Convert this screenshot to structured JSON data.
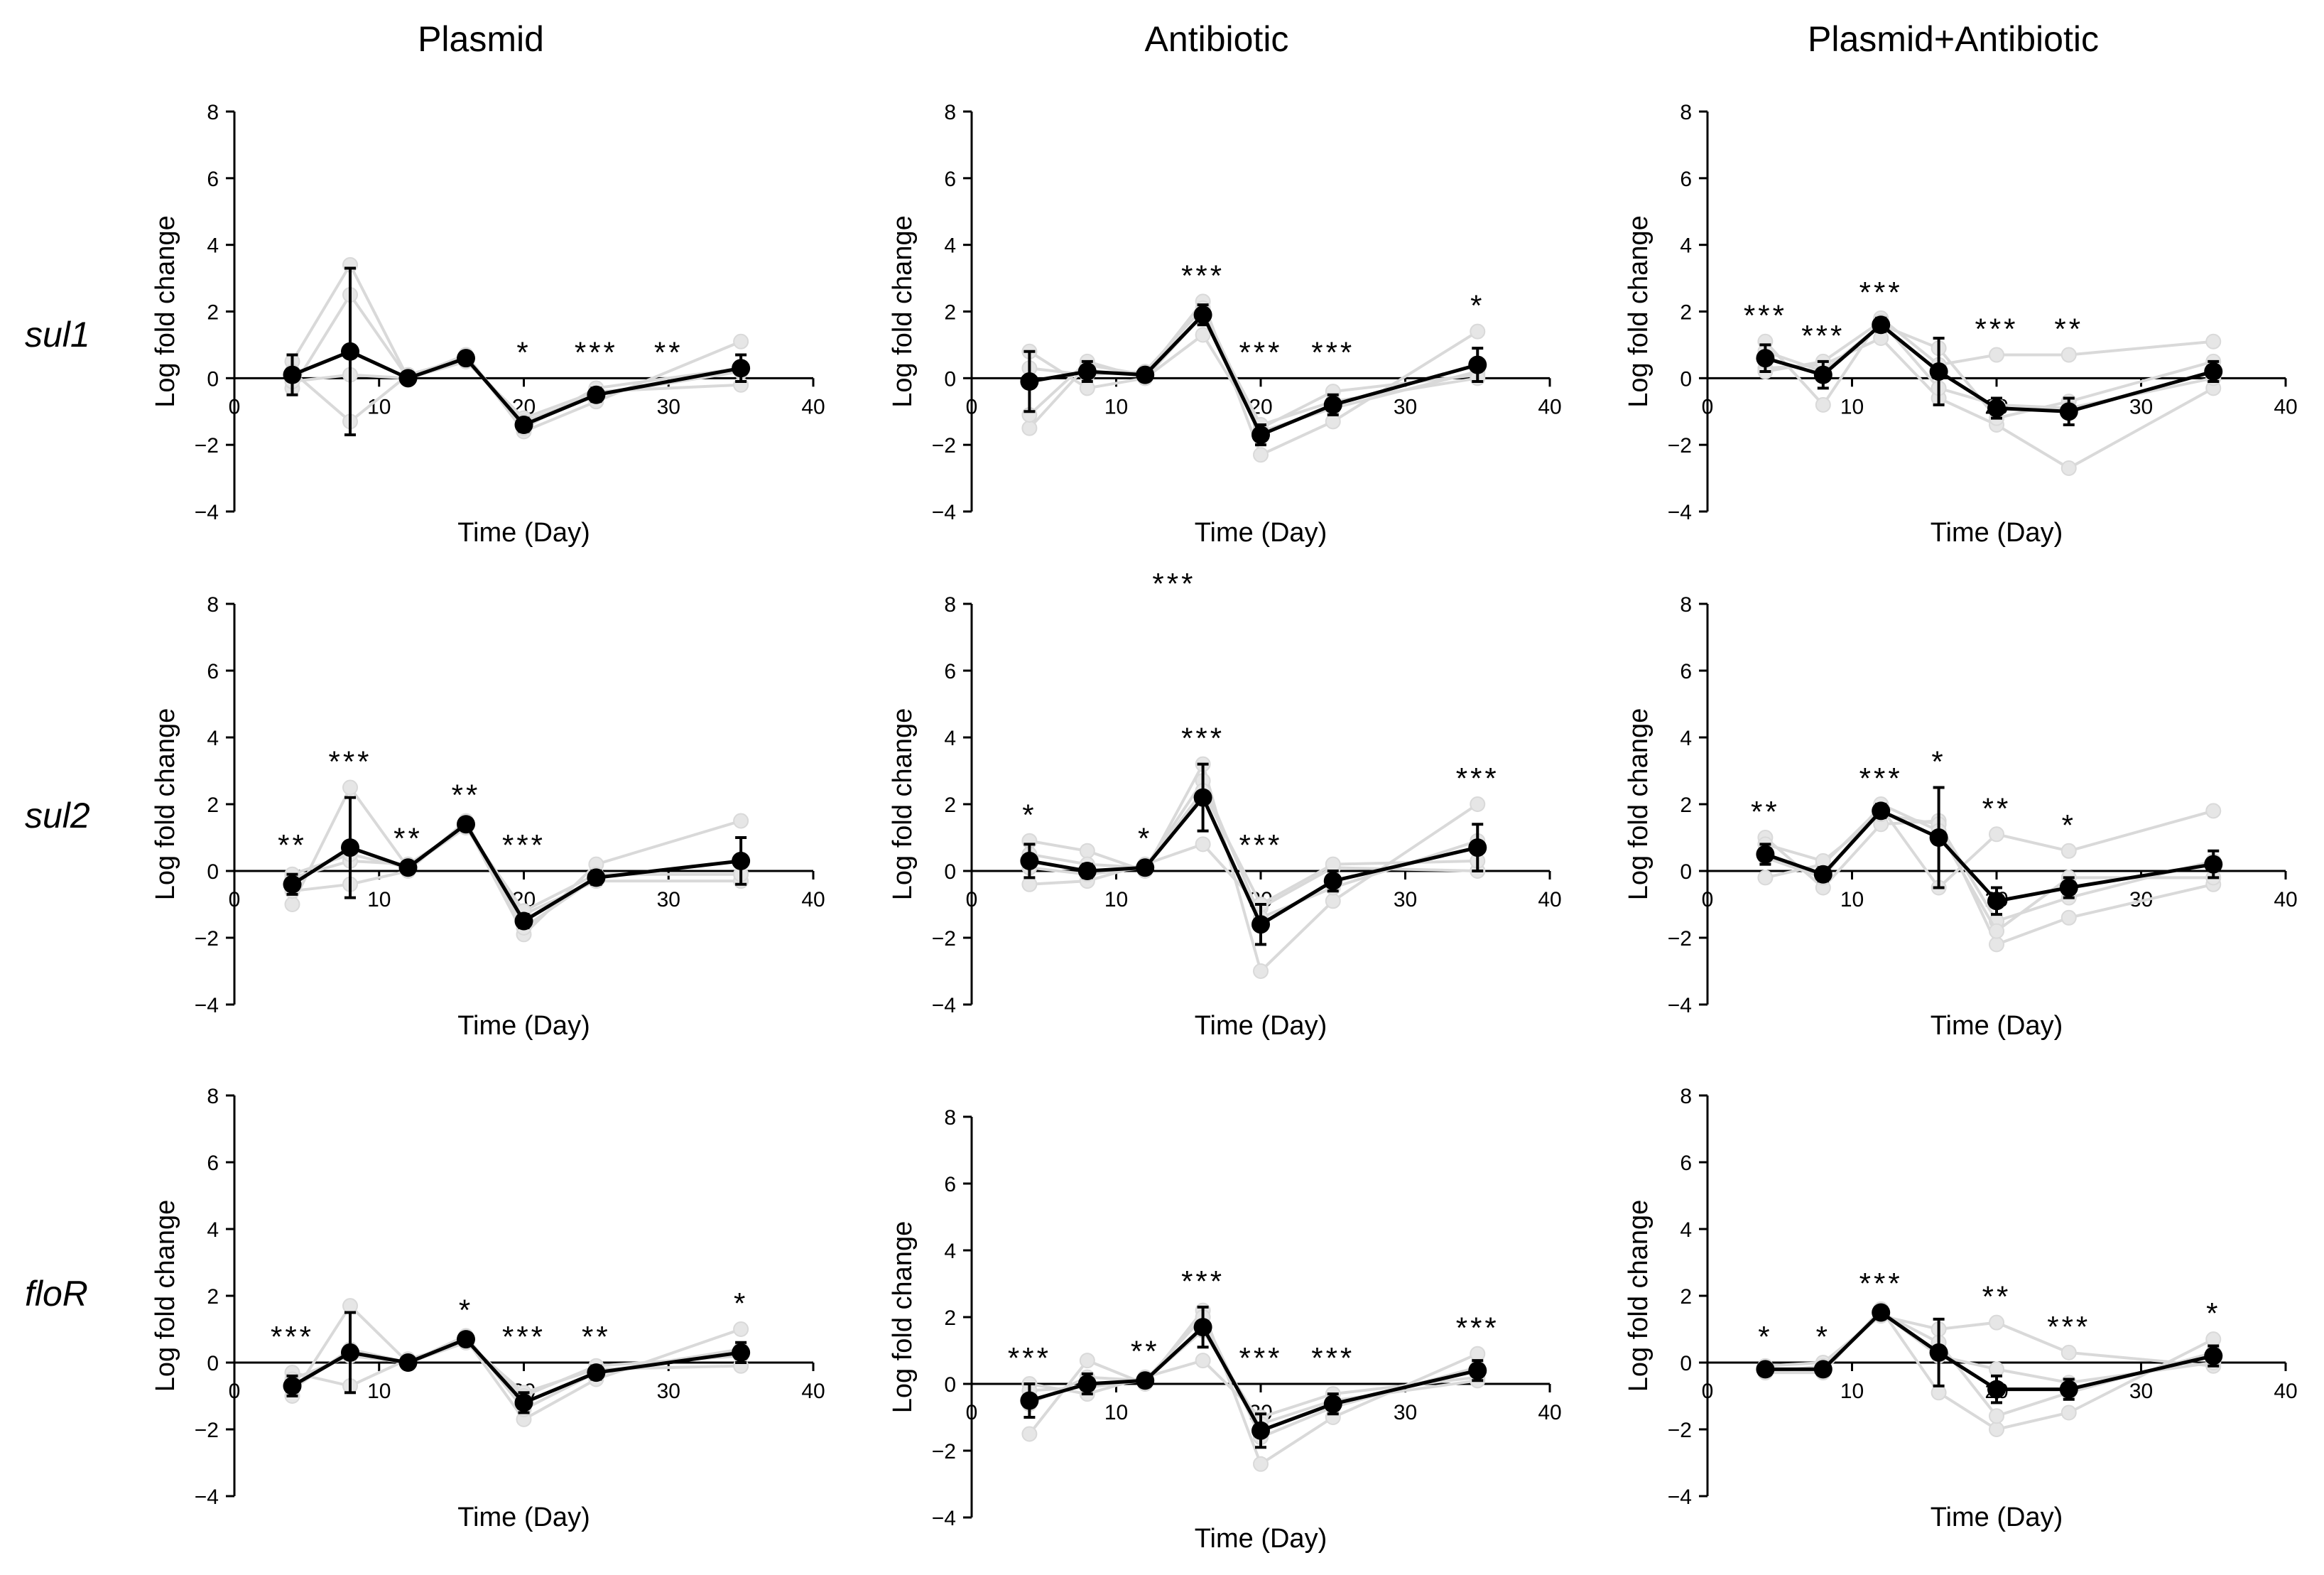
{
  "figure": {
    "column_titles": [
      "Plasmid",
      "Antibiotic",
      "Plasmid+Antibiotic"
    ],
    "row_labels": [
      "sul1",
      "sul2",
      "floR"
    ],
    "colors": {
      "mean": "#000000",
      "replicate": "#d9d9d9",
      "axis": "#000000"
    }
  },
  "chart_data": [
    {
      "type": "line",
      "id": "sul1-plasmid",
      "gene": "sul1",
      "treatment": "Plasmid",
      "xlabel": "Time (Day)",
      "ylabel": "Log fold change",
      "xlim": [
        0,
        40
      ],
      "ylim": [
        -4,
        8
      ],
      "xticks": [
        "0",
        "10",
        "20",
        "30",
        "40"
      ],
      "yticks": [
        "−4",
        "−2",
        "0",
        "2",
        "4",
        "6",
        "8"
      ],
      "x": [
        4,
        8,
        12,
        16,
        20,
        25,
        35
      ],
      "series": [
        {
          "name": "mean",
          "values": [
            0.1,
            0.8,
            0.0,
            0.6,
            -1.4,
            -0.5,
            0.3
          ]
        },
        {
          "name": "rep1",
          "values": [
            0.5,
            3.4,
            0.0,
            0.7,
            -1.6,
            -0.7,
            1.1
          ]
        },
        {
          "name": "rep2",
          "values": [
            -0.3,
            2.5,
            0.0,
            0.5,
            -1.2,
            -0.4,
            -0.2
          ]
        },
        {
          "name": "rep3",
          "values": [
            0.2,
            -1.3,
            0.1,
            0.6,
            -1.3,
            -0.5,
            0.2
          ]
        },
        {
          "name": "rep4",
          "values": [
            -0.1,
            0.1,
            0.0,
            0.7,
            -1.5,
            -0.3,
            0.3
          ]
        }
      ],
      "error": [
        0.6,
        2.5,
        0.1,
        0.1,
        0.2,
        0.2,
        0.4
      ],
      "significance": [
        {
          "x": 20,
          "label": "*"
        },
        {
          "x": 25,
          "label": "***"
        },
        {
          "x": 30,
          "label": "**"
        }
      ]
    },
    {
      "type": "line",
      "id": "sul1-antibiotic",
      "gene": "sul1",
      "treatment": "Antibiotic",
      "xlabel": "Time (Day)",
      "ylabel": "Log fold change",
      "xlim": [
        0,
        40
      ],
      "ylim": [
        -4,
        8
      ],
      "xticks": [
        "0",
        "10",
        "20",
        "30",
        "40"
      ],
      "yticks": [
        "−4",
        "−2",
        "0",
        "2",
        "4",
        "6",
        "8"
      ],
      "x": [
        4,
        8,
        12,
        16,
        20,
        25,
        35
      ],
      "series": [
        {
          "name": "mean",
          "values": [
            -0.1,
            0.2,
            0.1,
            1.9,
            -1.7,
            -0.8,
            0.4
          ]
        },
        {
          "name": "rep1",
          "values": [
            -1.5,
            0.4,
            0.1,
            2.3,
            -2.3,
            -1.3,
            1.4
          ]
        },
        {
          "name": "rep2",
          "values": [
            0.8,
            -0.3,
            0.0,
            1.3,
            -1.5,
            -0.4,
            0.1
          ]
        },
        {
          "name": "rep3",
          "values": [
            0.3,
            0.1,
            0.2,
            2.1,
            -1.6,
            -0.9,
            0.2
          ]
        },
        {
          "name": "rep4",
          "values": [
            -1.1,
            0.5,
            0.0,
            1.9,
            -1.4,
            -0.7,
            0.0
          ]
        }
      ],
      "error": [
        0.9,
        0.3,
        0.1,
        0.3,
        0.3,
        0.3,
        0.5
      ],
      "significance": [
        {
          "x": 16,
          "label": "***"
        },
        {
          "x": 20,
          "label": "***"
        },
        {
          "x": 25,
          "label": "***"
        },
        {
          "x": 35,
          "label": "*"
        }
      ]
    },
    {
      "type": "line",
      "id": "sul1-plasmid-antibiotic",
      "gene": "sul1",
      "treatment": "Plasmid+Antibiotic",
      "xlabel": "Time (Day)",
      "ylabel": "Log fold change",
      "xlim": [
        0,
        40
      ],
      "ylim": [
        -4,
        8
      ],
      "xticks": [
        "0",
        "10",
        "20",
        "30",
        "40"
      ],
      "yticks": [
        "−4",
        "−2",
        "0",
        "2",
        "4",
        "6",
        "8"
      ],
      "x": [
        4,
        8,
        12,
        16,
        20,
        25,
        35
      ],
      "series": [
        {
          "name": "mean",
          "values": [
            0.6,
            0.1,
            1.6,
            0.2,
            -0.9,
            -1.0,
            0.2
          ]
        },
        {
          "name": "rep1",
          "values": [
            1.1,
            -0.8,
            1.8,
            0.4,
            0.7,
            0.7,
            1.1
          ]
        },
        {
          "name": "rep2",
          "values": [
            0.3,
            0.4,
            1.2,
            -0.6,
            -1.4,
            -2.7,
            -0.3
          ]
        },
        {
          "name": "rep3",
          "values": [
            0.8,
            0.2,
            1.6,
            0.9,
            -1.2,
            -0.7,
            0.5
          ]
        },
        {
          "name": "rep4",
          "values": [
            0.2,
            0.5,
            1.7,
            -0.3,
            -0.8,
            -0.9,
            0.0
          ]
        }
      ],
      "error": [
        0.4,
        0.4,
        0.2,
        1.0,
        0.3,
        0.4,
        0.3
      ],
      "significance": [
        {
          "x": 4,
          "label": "***"
        },
        {
          "x": 8,
          "label": "***"
        },
        {
          "x": 12,
          "label": "***"
        },
        {
          "x": 20,
          "label": "***"
        },
        {
          "x": 25,
          "label": "**"
        }
      ]
    },
    {
      "type": "line",
      "id": "sul2-plasmid",
      "gene": "sul2",
      "treatment": "Plasmid",
      "xlabel": "Time (Day)",
      "ylabel": "Log fold change",
      "xlim": [
        0,
        40
      ],
      "ylim": [
        -4,
        8
      ],
      "xticks": [
        "0",
        "10",
        "20",
        "30",
        "40"
      ],
      "yticks": [
        "−4",
        "−2",
        "0",
        "2",
        "4",
        "6",
        "8"
      ],
      "x": [
        4,
        8,
        12,
        16,
        20,
        25,
        35
      ],
      "series": [
        {
          "name": "mean",
          "values": [
            -0.4,
            0.7,
            0.1,
            1.4,
            -1.5,
            -0.2,
            0.3
          ]
        },
        {
          "name": "rep1",
          "values": [
            -1.0,
            2.5,
            0.1,
            1.4,
            -1.9,
            0.2,
            1.5
          ]
        },
        {
          "name": "rep2",
          "values": [
            -0.2,
            0.3,
            0.2,
            1.3,
            -1.3,
            -0.3,
            -0.3
          ]
        },
        {
          "name": "rep3",
          "values": [
            -0.6,
            -0.4,
            0.0,
            1.5,
            -1.7,
            -0.2,
            0.3
          ]
        },
        {
          "name": "rep4",
          "values": [
            -0.1,
            0.5,
            0.1,
            1.3,
            -1.2,
            -0.1,
            -0.1
          ]
        }
      ],
      "error": [
        0.3,
        1.5,
        0.1,
        0.1,
        0.2,
        0.2,
        0.7
      ],
      "significance": [
        {
          "x": 4,
          "label": "**"
        },
        {
          "x": 8,
          "label": "***"
        },
        {
          "x": 12,
          "label": "**"
        },
        {
          "x": 16,
          "label": "**"
        },
        {
          "x": 20,
          "label": "***"
        }
      ]
    },
    {
      "type": "line",
      "id": "sul2-antibiotic",
      "gene": "sul2",
      "treatment": "Antibiotic",
      "xlabel": "Time (Day)",
      "ylabel": "Log fold change",
      "xlim": [
        0,
        40
      ],
      "ylim": [
        -4,
        8
      ],
      "xticks": [
        "0",
        "10",
        "20",
        "30",
        "40"
      ],
      "yticks": [
        "−4",
        "−2",
        "0",
        "2",
        "4",
        "6",
        "8"
      ],
      "x": [
        4,
        8,
        12,
        16,
        20,
        25,
        35
      ],
      "series": [
        {
          "name": "mean",
          "values": [
            0.3,
            0.0,
            0.1,
            2.2,
            -1.6,
            -0.3,
            0.7
          ]
        },
        {
          "name": "rep1",
          "values": [
            0.9,
            0.6,
            0.0,
            3.2,
            -3.0,
            -0.9,
            2.0
          ]
        },
        {
          "name": "rep2",
          "values": [
            -0.4,
            -0.3,
            0.2,
            0.8,
            -1.1,
            0.1,
            0.0
          ]
        },
        {
          "name": "rep3",
          "values": [
            0.5,
            0.2,
            0.1,
            2.7,
            -1.4,
            -0.5,
            0.9
          ]
        },
        {
          "name": "rep4",
          "values": [
            0.1,
            -0.1,
            0.1,
            2.4,
            -1.0,
            0.2,
            0.3
          ]
        }
      ],
      "error": [
        0.5,
        0.2,
        0.1,
        1.0,
        0.6,
        0.3,
        0.7
      ],
      "significance": [
        {
          "x": 4,
          "label": "*"
        },
        {
          "x": 12,
          "label": "*"
        },
        {
          "x": 16,
          "label": "***"
        },
        {
          "x": 20,
          "label": "***"
        },
        {
          "x": 35,
          "label": "***"
        }
      ],
      "extra_annotation": {
        "label": "***",
        "x": 14,
        "y": 8.3
      }
    },
    {
      "type": "line",
      "id": "sul2-plasmid-antibiotic",
      "gene": "sul2",
      "treatment": "Plasmid+Antibiotic",
      "xlabel": "Time (Day)",
      "ylabel": "Log fold change",
      "xlim": [
        0,
        40
      ],
      "ylim": [
        -4,
        8
      ],
      "xticks": [
        "0",
        "10",
        "20",
        "30",
        "40"
      ],
      "yticks": [
        "−4",
        "−2",
        "0",
        "2",
        "4",
        "6",
        "8"
      ],
      "x": [
        4,
        8,
        12,
        16,
        20,
        25,
        35
      ],
      "series": [
        {
          "name": "mean",
          "values": [
            0.5,
            -0.1,
            1.8,
            1.0,
            -0.9,
            -0.5,
            0.2
          ]
        },
        {
          "name": "rep1",
          "values": [
            1.0,
            -0.5,
            1.4,
            1.5,
            -2.2,
            -1.4,
            -0.4
          ]
        },
        {
          "name": "rep2",
          "values": [
            -0.2,
            0.2,
            1.9,
            -0.5,
            1.1,
            0.6,
            1.8
          ]
        },
        {
          "name": "rep3",
          "values": [
            0.8,
            0.3,
            1.7,
            1.4,
            -1.5,
            -0.8,
            0.3
          ]
        },
        {
          "name": "rep4",
          "values": [
            0.4,
            -0.2,
            2.0,
            1.2,
            -1.8,
            -0.2,
            -0.2
          ]
        }
      ],
      "error": [
        0.3,
        0.2,
        0.2,
        1.5,
        0.4,
        0.3,
        0.4
      ],
      "significance": [
        {
          "x": 4,
          "label": "**"
        },
        {
          "x": 12,
          "label": "***"
        },
        {
          "x": 16,
          "label": "*"
        },
        {
          "x": 20,
          "label": "**"
        },
        {
          "x": 25,
          "label": "*"
        }
      ]
    },
    {
      "type": "line",
      "id": "floR-plasmid",
      "gene": "floR",
      "treatment": "Plasmid",
      "xlabel": "Time (Day)",
      "ylabel": "Log fold change",
      "xlim": [
        0,
        40
      ],
      "ylim": [
        -4,
        8
      ],
      "xticks": [
        "0",
        "10",
        "20",
        "30",
        "40"
      ],
      "yticks": [
        "−4",
        "−2",
        "0",
        "2",
        "4",
        "6",
        "8"
      ],
      "x": [
        4,
        8,
        12,
        16,
        20,
        25,
        35
      ],
      "series": [
        {
          "name": "mean",
          "values": [
            -0.7,
            0.3,
            0.0,
            0.7,
            -1.2,
            -0.3,
            0.3
          ]
        },
        {
          "name": "rep1",
          "values": [
            -1.0,
            1.7,
            0.0,
            0.7,
            -1.7,
            -0.5,
            1.0
          ]
        },
        {
          "name": "rep2",
          "values": [
            -0.3,
            -0.7,
            0.1,
            0.6,
            -0.9,
            -0.2,
            -0.1
          ]
        },
        {
          "name": "rep3",
          "values": [
            -0.8,
            0.4,
            0.0,
            0.8,
            -1.4,
            -0.3,
            0.4
          ]
        },
        {
          "name": "rep4",
          "values": [
            -0.5,
            0.2,
            0.0,
            0.6,
            -1.0,
            -0.1,
            0.2
          ]
        }
      ],
      "error": [
        0.3,
        1.2,
        0.1,
        0.1,
        0.3,
        0.2,
        0.3
      ],
      "significance": [
        {
          "x": 4,
          "label": "***"
        },
        {
          "x": 16,
          "label": "*"
        },
        {
          "x": 20,
          "label": "***"
        },
        {
          "x": 25,
          "label": "**"
        },
        {
          "x": 35,
          "label": "*"
        }
      ]
    },
    {
      "type": "line",
      "id": "floR-antibiotic",
      "gene": "floR",
      "treatment": "Antibiotic",
      "xlabel": "Time (Day)",
      "ylabel": "Log fold change",
      "xlim": [
        0,
        40
      ],
      "ylim": [
        -4,
        8
      ],
      "xticks": [
        "0",
        "10",
        "20",
        "30",
        "40"
      ],
      "yticks": [
        "−4",
        "−2",
        "0",
        "2",
        "4",
        "6",
        "8"
      ],
      "x": [
        4,
        8,
        12,
        16,
        20,
        25,
        35
      ],
      "series": [
        {
          "name": "mean",
          "values": [
            -0.5,
            0.0,
            0.1,
            1.7,
            -1.4,
            -0.6,
            0.4
          ]
        },
        {
          "name": "rep1",
          "values": [
            -1.5,
            0.7,
            0.0,
            2.2,
            -2.4,
            -1.0,
            0.9
          ]
        },
        {
          "name": "rep2",
          "values": [
            0.0,
            -0.3,
            0.2,
            0.7,
            -1.0,
            -0.3,
            0.2
          ]
        },
        {
          "name": "rep3",
          "values": [
            -0.6,
            0.2,
            0.1,
            2.0,
            -1.6,
            -0.7,
            0.5
          ]
        },
        {
          "name": "rep4",
          "values": [
            -0.2,
            -0.1,
            0.1,
            1.6,
            -1.2,
            -0.5,
            0.1
          ]
        }
      ],
      "error": [
        0.5,
        0.3,
        0.1,
        0.6,
        0.5,
        0.3,
        0.3
      ],
      "significance": [
        {
          "x": 4,
          "label": "***"
        },
        {
          "x": 12,
          "label": "**"
        },
        {
          "x": 16,
          "label": "***"
        },
        {
          "x": 20,
          "label": "***"
        },
        {
          "x": 25,
          "label": "***"
        },
        {
          "x": 35,
          "label": "***"
        }
      ]
    },
    {
      "type": "line",
      "id": "floR-plasmid-antibiotic",
      "gene": "floR",
      "treatment": "Plasmid+Antibiotic",
      "xlabel": "Time (Day)",
      "ylabel": "Log fold change",
      "xlim": [
        0,
        40
      ],
      "ylim": [
        -4,
        8
      ],
      "xticks": [
        "0",
        "10",
        "20",
        "30",
        "40"
      ],
      "yticks": [
        "−4",
        "−2",
        "0",
        "2",
        "4",
        "6",
        "8"
      ],
      "x": [
        4,
        8,
        12,
        16,
        20,
        25,
        35
      ],
      "series": [
        {
          "name": "mean",
          "values": [
            -0.2,
            -0.2,
            1.5,
            0.3,
            -0.8,
            -0.8,
            0.2
          ]
        },
        {
          "name": "rep1",
          "values": [
            -0.3,
            -0.3,
            1.6,
            -0.9,
            -2.0,
            -1.5,
            0.7
          ]
        },
        {
          "name": "rep2",
          "values": [
            -0.1,
            0.0,
            1.4,
            1.0,
            1.2,
            0.3,
            -0.1
          ]
        },
        {
          "name": "rep3",
          "values": [
            -0.2,
            -0.2,
            1.5,
            0.6,
            -1.6,
            -0.9,
            0.3
          ]
        },
        {
          "name": "rep4",
          "values": [
            -0.3,
            -0.1,
            1.5,
            0.2,
            -0.2,
            -0.6,
            0.0
          ]
        }
      ],
      "error": [
        0.1,
        0.1,
        0.1,
        1.0,
        0.4,
        0.3,
        0.3
      ],
      "significance": [
        {
          "x": 4,
          "label": "*"
        },
        {
          "x": 8,
          "label": "*"
        },
        {
          "x": 12,
          "label": "***"
        },
        {
          "x": 20,
          "label": "**"
        },
        {
          "x": 25,
          "label": "***"
        },
        {
          "x": 35,
          "label": "*"
        }
      ]
    }
  ]
}
